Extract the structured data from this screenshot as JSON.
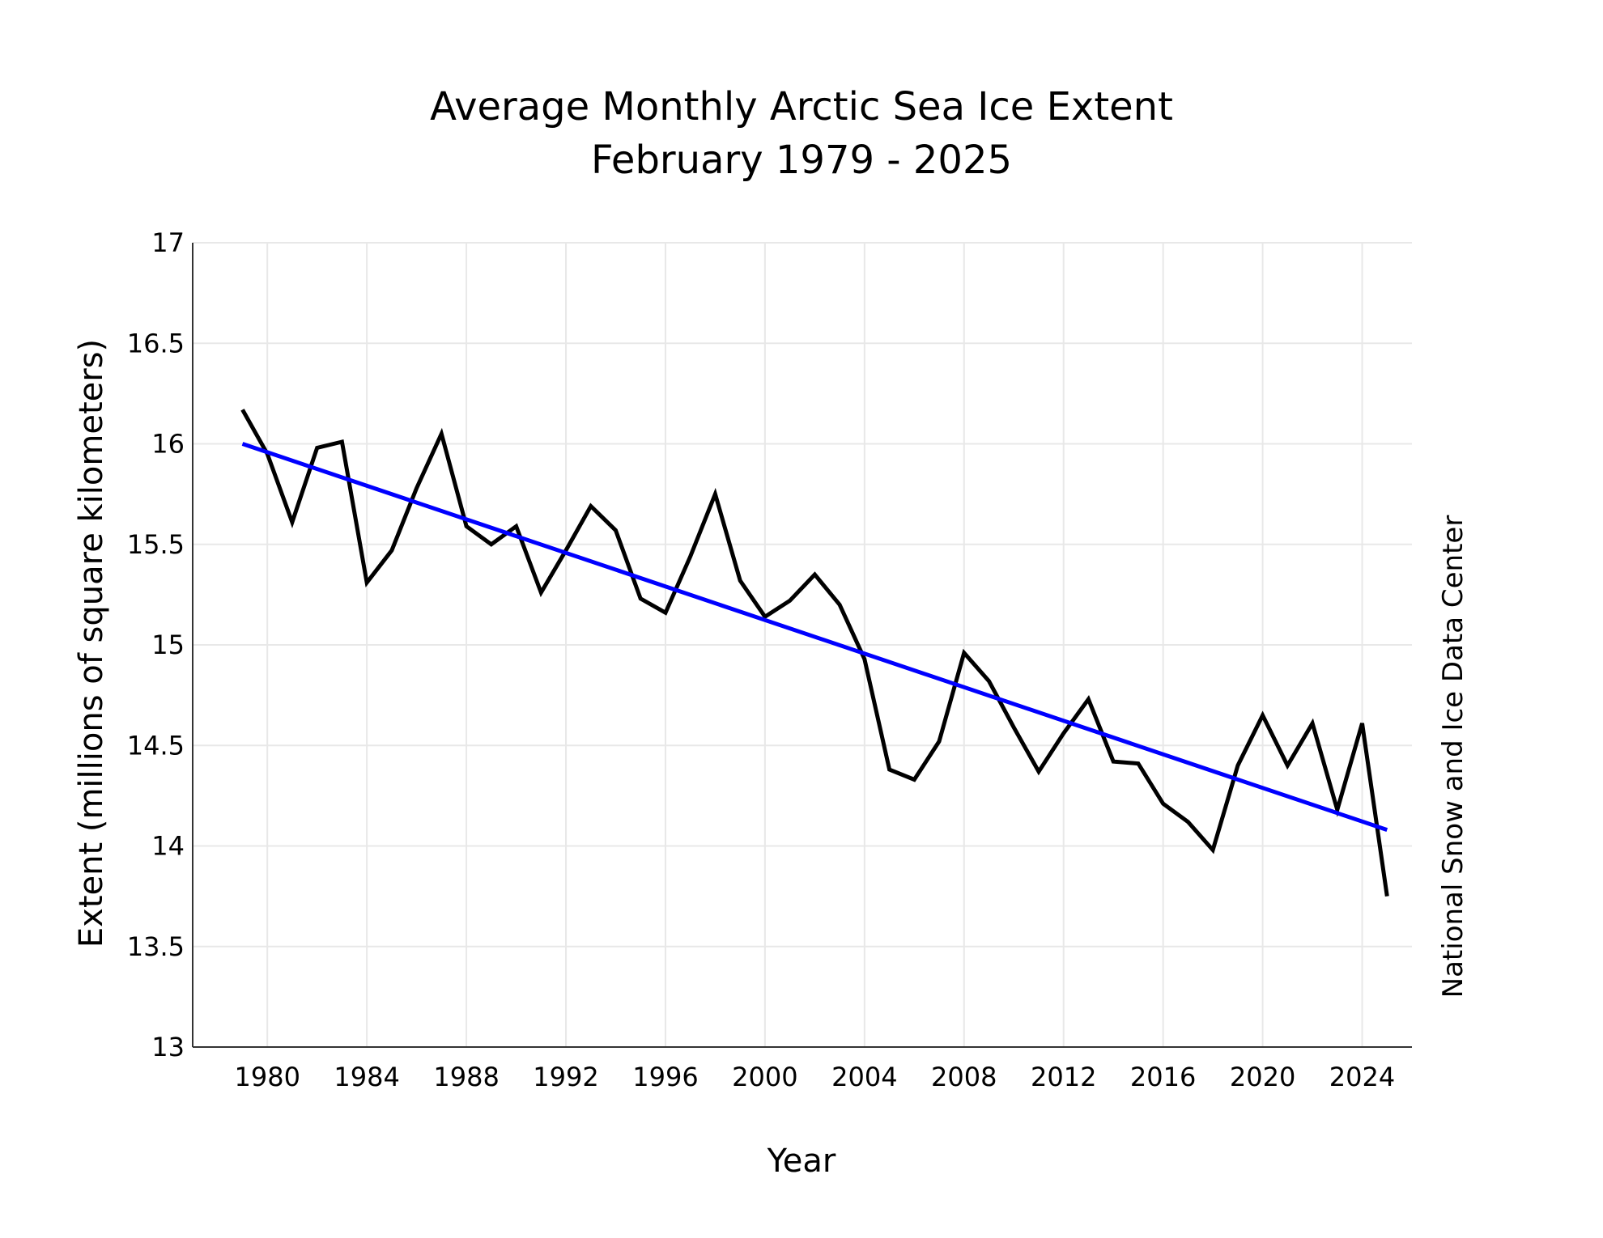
{
  "chart_data": {
    "type": "line",
    "title_line1": "Average Monthly Arctic Sea Ice Extent",
    "title_line2": "February 1979 - 2025",
    "xlabel": "Year",
    "ylabel": "Extent (millions of square kilometers)",
    "credit": "National Snow and Ice Data Center",
    "xlim": [
      1977,
      2026
    ],
    "ylim": [
      13,
      17
    ],
    "x_ticks": [
      1980,
      1984,
      1988,
      1992,
      1996,
      2000,
      2004,
      2008,
      2012,
      2016,
      2020,
      2024
    ],
    "y_ticks": [
      13,
      13.5,
      14,
      14.5,
      15,
      15.5,
      16,
      16.5,
      17
    ],
    "y_tick_labels": [
      "13",
      "13.5",
      "14",
      "14.5",
      "15",
      "15.5",
      "16",
      "16.5",
      "17"
    ],
    "grid": true,
    "series": [
      {
        "color": "#000000",
        "x": [
          1979,
          1980,
          1981,
          1982,
          1983,
          1984,
          1985,
          1986,
          1987,
          1988,
          1989,
          1990,
          1991,
          1992,
          1993,
          1994,
          1995,
          1996,
          1997,
          1998,
          1999,
          2000,
          2001,
          2002,
          2003,
          2004,
          2005,
          2006,
          2007,
          2008,
          2009,
          2010,
          2011,
          2012,
          2013,
          2014,
          2015,
          2016,
          2017,
          2018,
          2019,
          2020,
          2021,
          2022,
          2023,
          2024,
          2025
        ],
        "y": [
          16.17,
          15.95,
          15.61,
          15.98,
          16.01,
          15.31,
          15.47,
          15.78,
          16.05,
          15.59,
          15.5,
          15.59,
          15.26,
          15.47,
          15.69,
          15.57,
          15.23,
          15.16,
          15.44,
          15.75,
          15.32,
          15.14,
          15.22,
          15.35,
          15.2,
          14.93,
          14.38,
          14.33,
          14.52,
          14.96,
          14.82,
          14.59,
          14.37,
          14.56,
          14.73,
          14.42,
          14.41,
          14.21,
          14.12,
          13.98,
          14.4,
          14.65,
          14.4,
          14.61,
          14.18,
          14.61,
          13.75
        ]
      },
      {
        "color": "#0000ff",
        "x": [
          1979,
          2025
        ],
        "y": [
          16.0,
          14.08
        ]
      }
    ]
  }
}
